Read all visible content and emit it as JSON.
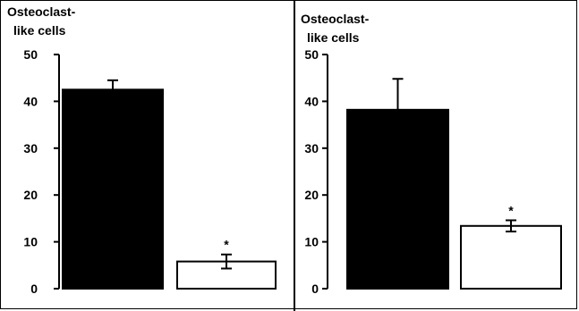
{
  "chart_data": [
    {
      "type": "bar",
      "ylabel_lines": [
        "Osteoclast-",
        "like cells"
      ],
      "ylim": [
        0,
        50
      ],
      "yticks": [
        0,
        10,
        20,
        30,
        40,
        50
      ],
      "categories": [
        "",
        ""
      ],
      "values": [
        42.5,
        5.8
      ],
      "errors": [
        2.0,
        1.5
      ],
      "bar_colors": [
        "#000000",
        "#ffffff"
      ],
      "significance": [
        "",
        "*"
      ]
    },
    {
      "type": "bar",
      "ylabel_lines": [
        "Osteoclast-",
        "like cells"
      ],
      "ylim": [
        0,
        50
      ],
      "yticks": [
        0,
        10,
        20,
        30,
        40,
        50
      ],
      "categories": [
        "",
        ""
      ],
      "values": [
        38.2,
        13.4
      ],
      "errors": [
        6.6,
        1.2
      ],
      "bar_colors": [
        "#000000",
        "#ffffff"
      ],
      "significance": [
        "",
        "*"
      ]
    }
  ]
}
